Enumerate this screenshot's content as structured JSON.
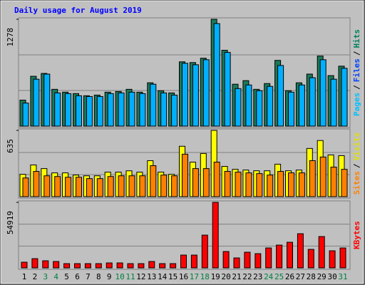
{
  "chart_data": [
    {
      "type": "bar",
      "title": "Daily usage for August 2019",
      "categories": [
        "1",
        "2",
        "3",
        "4",
        "5",
        "6",
        "7",
        "8",
        "9",
        "10",
        "11",
        "12",
        "13",
        "14",
        "15",
        "16",
        "17",
        "18",
        "19",
        "20",
        "21",
        "22",
        "23",
        "24",
        "25",
        "26",
        "27",
        "28",
        "29",
        "30",
        "31"
      ],
      "category_colors": [
        "#000000",
        "#000000",
        "#008040",
        "#008040",
        "#000000",
        "#000000",
        "#000000",
        "#000000",
        "#000000",
        "#008040",
        "#008040",
        "#000000",
        "#000000",
        "#000000",
        "#000000",
        "#000000",
        "#008040",
        "#008040",
        "#000000",
        "#000000",
        "#000000",
        "#000000",
        "#000000",
        "#008040",
        "#008040",
        "#000000",
        "#000000",
        "#000000",
        "#000000",
        "#000000",
        "#008040"
      ],
      "ylim": [
        0,
        1278
      ],
      "yticks": [
        1278
      ],
      "legend": [
        {
          "text": "Pages",
          "color": "#00c0ff"
        },
        {
          "text": "/",
          "color": "#000000"
        },
        {
          "text": "Files",
          "color": "#0040ff"
        },
        {
          "text": "/",
          "color": "#000000"
        },
        {
          "text": "Hits",
          "color": "#008060"
        }
      ],
      "series": [
        {
          "color": "#1a7a5a",
          "values": [
            311,
            596,
            630,
            440,
            406,
            389,
            363,
            371,
            406,
            414,
            440,
            406,
            518,
            423,
            397,
            769,
            760,
            812,
            1278,
            907,
            501,
            544,
            440,
            509,
            786,
            423,
            518,
            622,
            838,
            604,
            717
          ]
        },
        {
          "color": "#00b0ff",
          "values": [
            276,
            561,
            622,
            397,
            389,
            363,
            354,
            354,
            389,
            397,
            406,
            389,
            501,
            397,
            371,
            751,
            734,
            794,
            1226,
            881,
            449,
            492,
            423,
            475,
            725,
            406,
            492,
            579,
            794,
            561,
            691
          ]
        }
      ]
    },
    {
      "type": "bar",
      "ylim": [
        0,
        635
      ],
      "yticks": [
        635
      ],
      "legend": [
        {
          "text": "Sites",
          "color": "#ff8000"
        },
        {
          "text": "/",
          "color": "#000000"
        },
        {
          "text": "Visits",
          "color": "#e0e000"
        }
      ],
      "series": [
        {
          "color": "#ffff00",
          "values": [
            214,
            304,
            269,
            228,
            228,
            207,
            200,
            200,
            235,
            235,
            248,
            235,
            345,
            235,
            214,
            483,
            331,
            414,
            635,
            290,
            262,
            255,
            248,
            248,
            311,
            248,
            255,
            462,
            538,
            400,
            393
          ]
        },
        {
          "color": "#ff8000",
          "values": [
            179,
            242,
            200,
            193,
            186,
            186,
            173,
            173,
            193,
            200,
            200,
            200,
            297,
            207,
            200,
            407,
            269,
            269,
            331,
            242,
            235,
            228,
            221,
            207,
            242,
            228,
            228,
            345,
            380,
            283,
            262
          ]
        }
      ]
    },
    {
      "type": "bar",
      "ylim": [
        0,
        54919
      ],
      "yticks": [
        54919
      ],
      "legend": [
        {
          "text": "KBytes",
          "color": "#ff0000"
        }
      ],
      "series": [
        {
          "color": "#ff0000",
          "values": [
            4776,
            7761,
            5970,
            5373,
            3582,
            3582,
            3582,
            3582,
            4179,
            4179,
            3582,
            3582,
            5373,
            3582,
            3582,
            10746,
            10746,
            27462,
            54919,
            13731,
            8358,
            13134,
            11940,
            16716,
            19104,
            21492,
            28656,
            15522,
            26268,
            14328,
            16716
          ]
        }
      ]
    }
  ]
}
